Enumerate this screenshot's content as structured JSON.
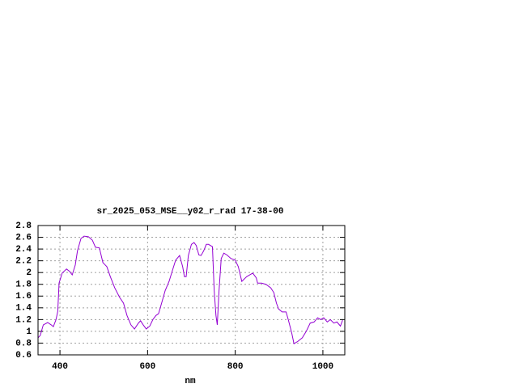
{
  "chart_data": {
    "type": "line",
    "title": "sr_2025_053_MSE__y02_r_rad 17-38-00",
    "xlabel": "nm",
    "xlim": [
      350,
      1050
    ],
    "xticks": [
      400,
      600,
      800,
      1000
    ],
    "ylim": [
      0.6,
      2.8
    ],
    "yticks": [
      0.6,
      0.8,
      1,
      1.2,
      1.4,
      1.6,
      1.8,
      2,
      2.2,
      2.4,
      2.6,
      2.8
    ],
    "grid": true,
    "series": [
      {
        "color": "#9400d3",
        "x": [
          350,
          355,
          362,
          372,
          380,
          385,
          391,
          395,
          398,
          405,
          415,
          422,
          428,
          435,
          440,
          448,
          455,
          465,
          474,
          481,
          490,
          498,
          507,
          515,
          525,
          536,
          545,
          553,
          562,
          570,
          579,
          584,
          590,
          597,
          605,
          612,
          619,
          625,
          632,
          640,
          649,
          656,
          664,
          673,
          680,
          684,
          688,
          693,
          700,
          706,
          711,
          717,
          722,
          728,
          734,
          739,
          748,
          752,
          756,
          759,
          763,
          768,
          774,
          781,
          790,
          800,
          807,
          815,
          826,
          833,
          840,
          848,
          851,
          860,
          870,
          881,
          888,
          894,
          899,
          907,
          916,
          921,
          929,
          934,
          943,
          953,
          962,
          971,
          980,
          988,
          995,
          1002,
          1010,
          1017,
          1025,
          1032,
          1040,
          1045
        ],
        "values": [
          0.89,
          0.93,
          1.11,
          1.15,
          1.11,
          1.08,
          1.2,
          1.34,
          1.82,
          1.99,
          2.06,
          2.02,
          1.96,
          2.13,
          2.37,
          2.58,
          2.62,
          2.61,
          2.55,
          2.43,
          2.42,
          2.17,
          2.1,
          1.93,
          1.74,
          1.58,
          1.48,
          1.27,
          1.11,
          1.04,
          1.14,
          1.18,
          1.11,
          1.04,
          1.09,
          1.2,
          1.27,
          1.3,
          1.48,
          1.69,
          1.85,
          2.02,
          2.21,
          2.29,
          2.1,
          1.93,
          1.93,
          2.29,
          2.48,
          2.51,
          2.46,
          2.3,
          2.29,
          2.37,
          2.48,
          2.48,
          2.44,
          1.69,
          1.27,
          1.11,
          1.69,
          2.24,
          2.33,
          2.3,
          2.24,
          2.21,
          2.1,
          1.85,
          1.93,
          1.96,
          1.99,
          1.91,
          1.82,
          1.82,
          1.8,
          1.74,
          1.66,
          1.48,
          1.38,
          1.33,
          1.33,
          1.2,
          0.97,
          0.79,
          0.83,
          0.89,
          1.0,
          1.14,
          1.16,
          1.23,
          1.2,
          1.23,
          1.16,
          1.2,
          1.14,
          1.16,
          1.09,
          1.19
        ]
      }
    ]
  }
}
